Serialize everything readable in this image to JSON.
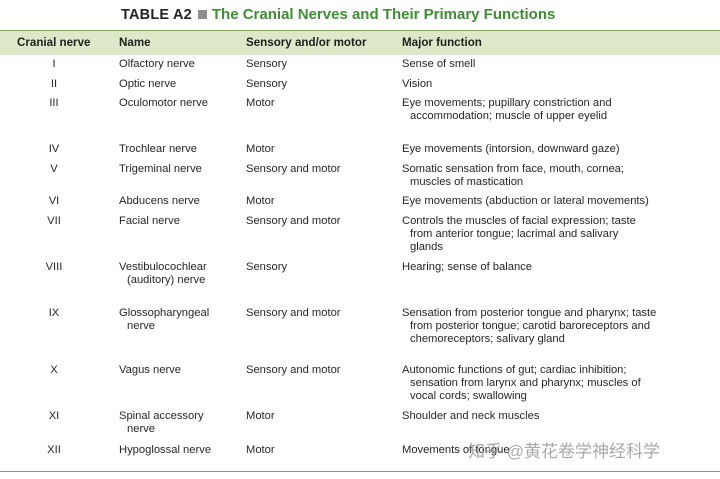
{
  "table_label": "TABLE A2",
  "title": "The Cranial Nerves and Their Primary Functions",
  "columns": [
    "Cranial nerve",
    "Name",
    "Sensory and/or motor",
    "Major function"
  ],
  "rows": [
    {
      "num": "I",
      "name": "Olfactory nerve",
      "type": "Sensory",
      "function": "Sense of smell"
    },
    {
      "num": "II",
      "name": "Optic nerve",
      "type": "Sensory",
      "function": "Vision"
    },
    {
      "num": "III",
      "name": "Oculomotor nerve",
      "type": "Motor",
      "function": "Eye movements; pupillary constriction and\naccommodation; muscle of upper eyelid"
    },
    {
      "num": "IV",
      "name": "Trochlear nerve",
      "type": "Motor",
      "function": "Eye movements (intorsion, downward gaze)"
    },
    {
      "num": "V",
      "name": "Trigeminal nerve",
      "type": "Sensory and motor",
      "function": "Somatic sensation from face, mouth, cornea;\nmuscles of mastication"
    },
    {
      "num": "VI",
      "name": "Abducens nerve",
      "type": "Motor",
      "function": "Eye movements (abduction or lateral movements)"
    },
    {
      "num": "VII",
      "name": "Facial nerve",
      "type": "Sensory and motor",
      "function": "Controls the muscles of facial expression; taste\nfrom anterior tongue; lacrimal and salivary\nglands"
    },
    {
      "num": "VIII",
      "name": "Vestibulocochlear\n(auditory) nerve",
      "type": "Sensory",
      "function": "Hearing; sense of balance"
    },
    {
      "num": "IX",
      "name": "Glossopharyngeal\nnerve",
      "type": "Sensory and motor",
      "function": "Sensation from posterior tongue and pharynx; taste\nfrom posterior tongue; carotid baroreceptors and\nchemoreceptors; salivary gland"
    },
    {
      "num": "X",
      "name": "Vagus nerve",
      "type": "Sensory and motor",
      "function": "Autonomic functions of gut; cardiac inhibition;\nsensation from larynx and pharynx; muscles of\nvocal cords; swallowing"
    },
    {
      "num": "XI",
      "name": "Spinal accessory\nnerve",
      "type": "Motor",
      "function": "Shoulder and neck muscles"
    },
    {
      "num": "XII",
      "name": "Hypoglossal nerve",
      "type": "Motor",
      "function": "Movements of tongue"
    }
  ],
  "watermark": "知乎 @黄花卷学神经科学"
}
